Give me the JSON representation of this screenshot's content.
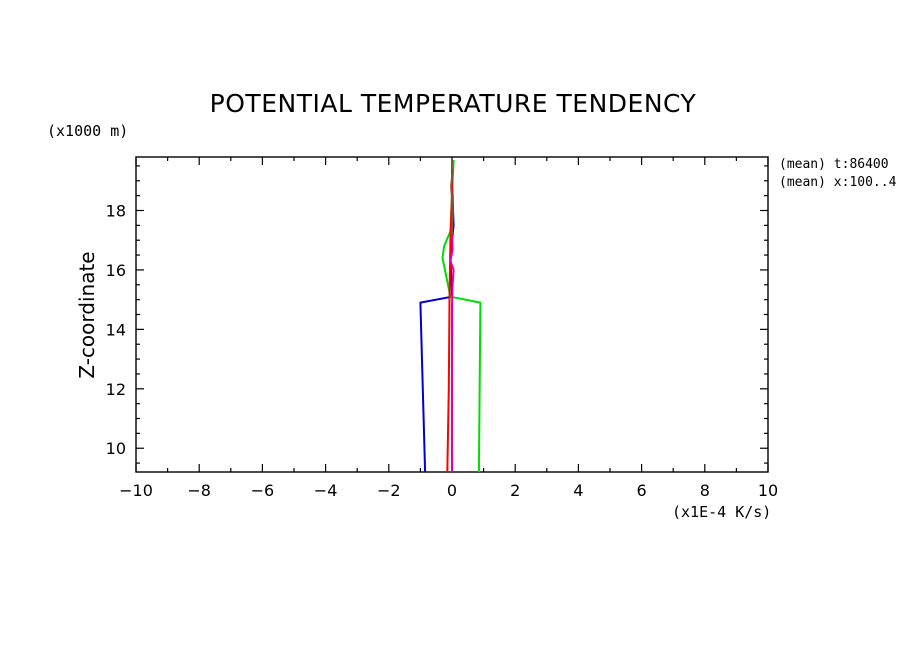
{
  "chart_data": {
    "type": "line",
    "title": "POTENTIAL TEMPERATURE TENDENCY",
    "xlabel": "(x1E-4 K/s)",
    "ylabel": "Z-coordinate",
    "y_unit_label": "(x1000 m)",
    "annotations": [
      "(mean) t:86400",
      "(mean) x:100..4"
    ],
    "xlim": [
      -10,
      10
    ],
    "ylim": [
      9.2,
      19.8
    ],
    "x_ticks": [
      -10,
      -8,
      -6,
      -4,
      -2,
      0,
      2,
      4,
      6,
      8,
      10
    ],
    "y_ticks": [
      10,
      12,
      14,
      16,
      18
    ],
    "grid": false,
    "legend": "none",
    "series": [
      {
        "color": "#0000cc",
        "x": [
          -0.85,
          -1.0,
          0.0,
          -0.05,
          0.05,
          0.0,
          0.0
        ],
        "z": [
          9.2,
          14.9,
          15.1,
          16.5,
          17.5,
          19.0,
          19.7
        ]
      },
      {
        "color": "#00dd00",
        "x": [
          0.85,
          0.9,
          -0.05,
          -0.3,
          -0.25,
          -0.05,
          0.0,
          0.05
        ],
        "z": [
          9.2,
          14.9,
          15.1,
          16.4,
          16.8,
          17.3,
          18.5,
          19.7
        ]
      },
      {
        "color": "#ff0000",
        "x": [
          -0.15,
          -0.1,
          -0.08,
          -0.05,
          0.0,
          0.0
        ],
        "z": [
          9.2,
          12.0,
          15.0,
          17.0,
          18.5,
          19.7
        ]
      },
      {
        "color": "#dd00aa",
        "x": [
          0.0,
          0.0,
          0.02,
          0.05,
          -0.05,
          0.02,
          0.0
        ],
        "z": [
          9.2,
          14.8,
          15.5,
          16.0,
          16.3,
          16.7,
          17.2
        ]
      },
      {
        "color": "#7a5a3a",
        "x": [
          0.0,
          0.03,
          -0.03,
          0.02,
          0.0
        ],
        "z": [
          17.2,
          18.0,
          18.8,
          19.3,
          19.7
        ]
      }
    ]
  }
}
